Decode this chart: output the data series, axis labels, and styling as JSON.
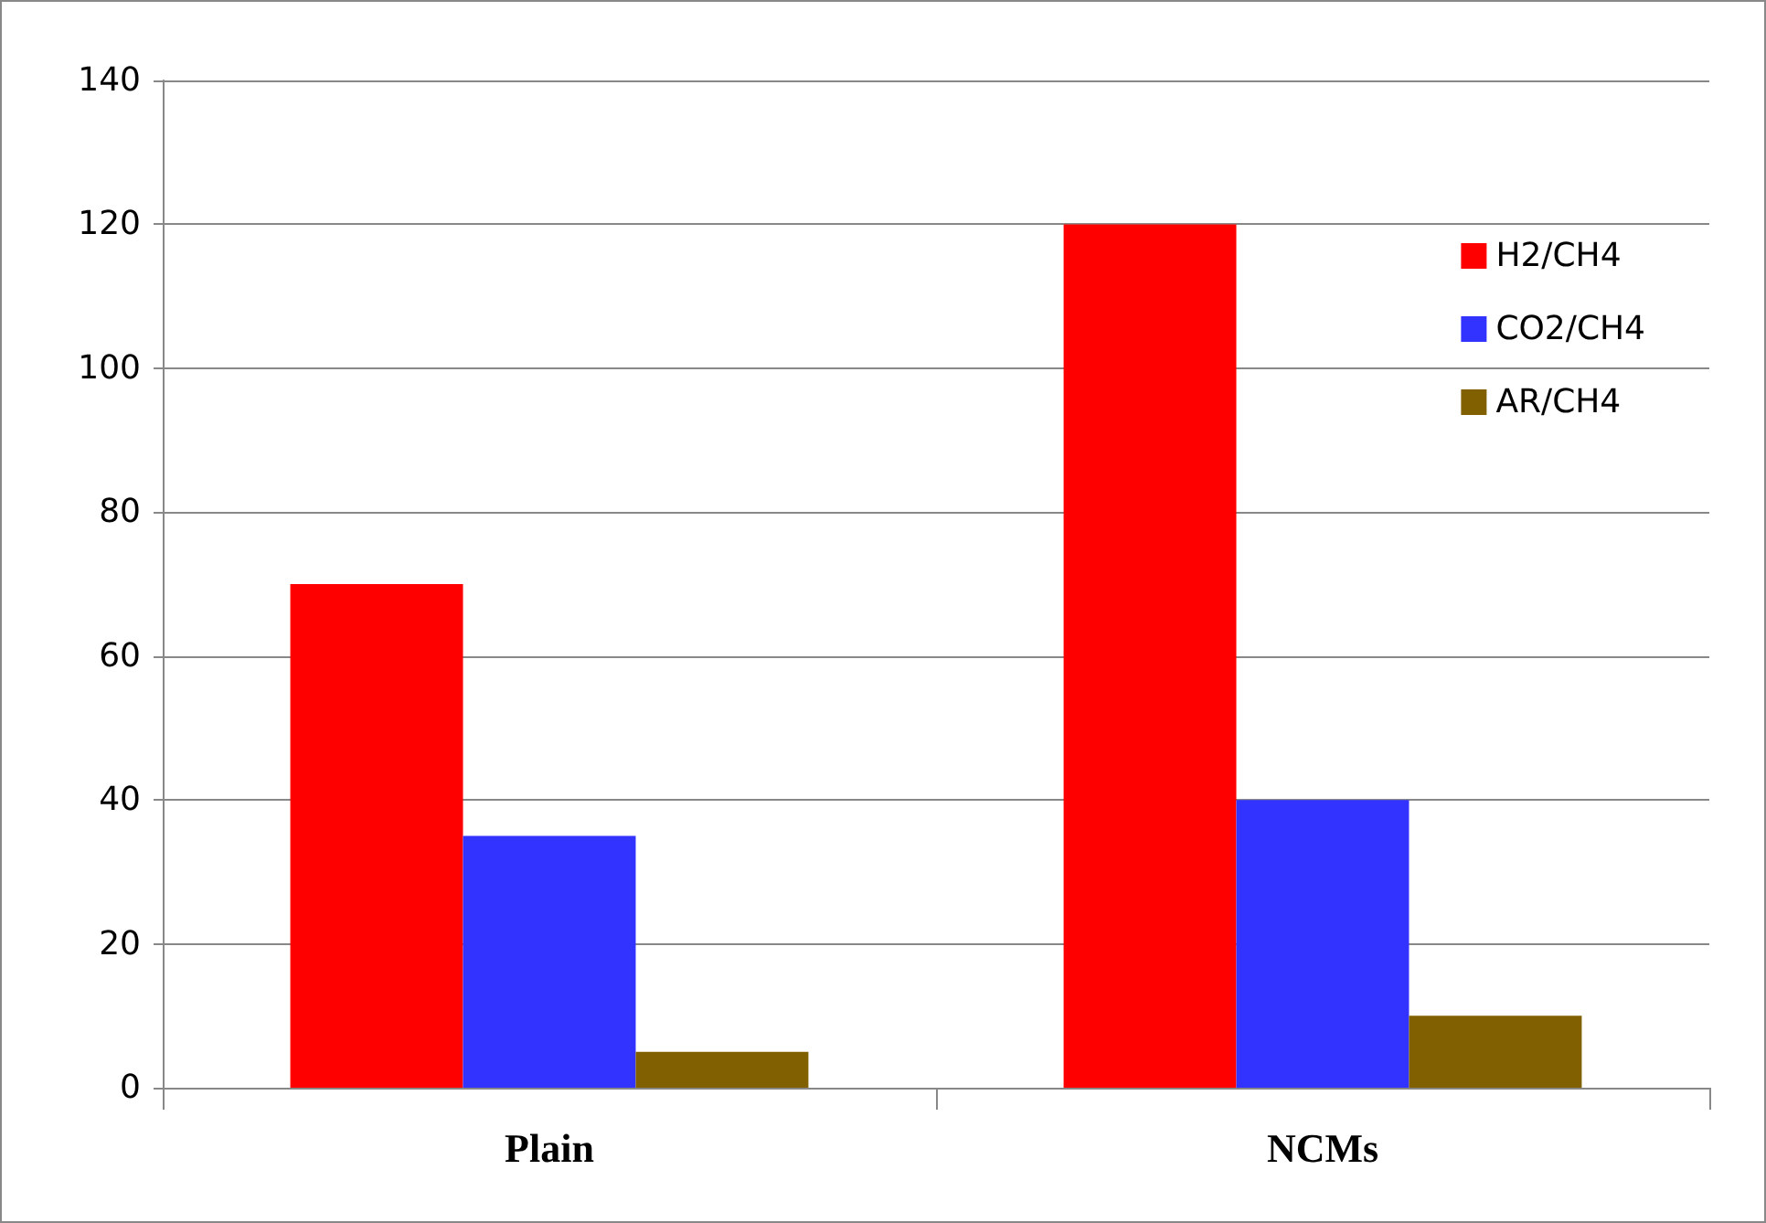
{
  "chart_data": {
    "type": "bar",
    "categories": [
      "Plain",
      "NCMs"
    ],
    "series": [
      {
        "name": "H2/CH4",
        "color": "#ff0000",
        "values": [
          70,
          120
        ]
      },
      {
        "name": "CO2/CH4",
        "color": "#3333ff",
        "values": [
          35,
          40
        ]
      },
      {
        "name": "AR/CH4",
        "color": "#806000",
        "values": [
          5,
          10
        ]
      }
    ],
    "ylim": [
      0,
      140
    ],
    "yticks": [
      0,
      20,
      40,
      60,
      80,
      100,
      120,
      140
    ],
    "grid": "y",
    "legend": "top right"
  }
}
